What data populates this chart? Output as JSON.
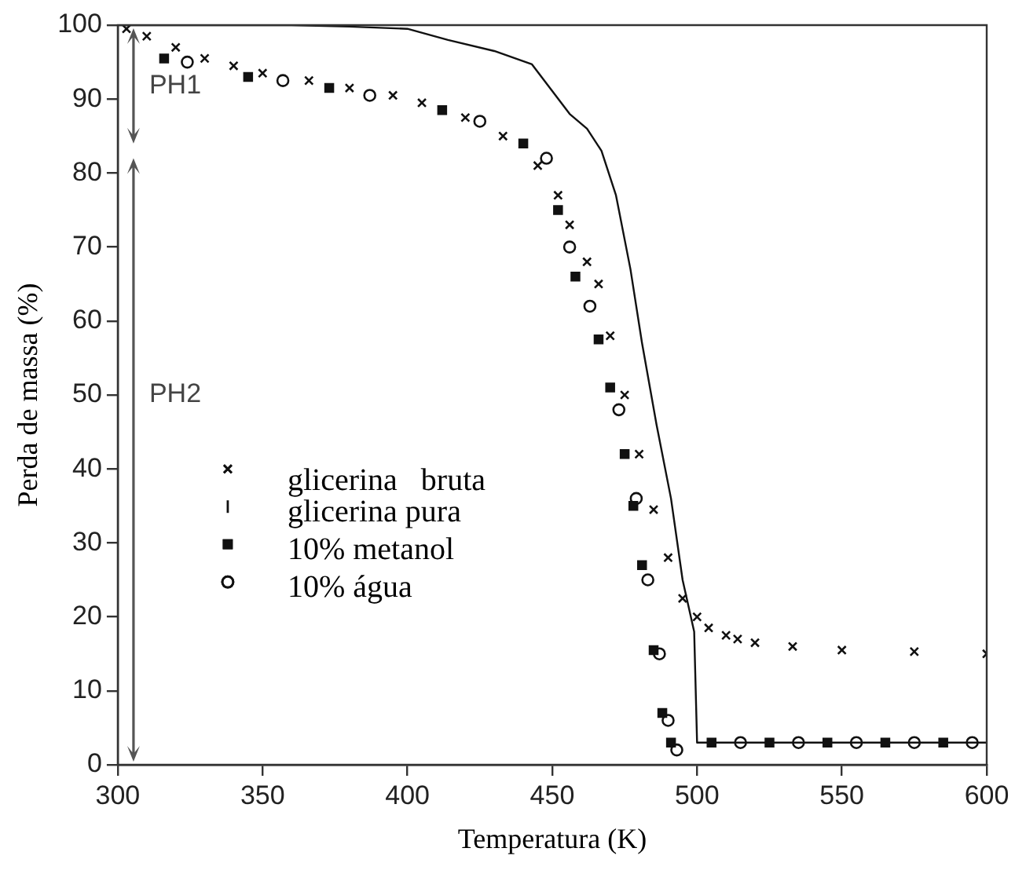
{
  "chart_data": {
    "type": "scatter",
    "xlabel": "Temperatura (K)",
    "ylabel": "Perda de massa (%)",
    "xlim": [
      300,
      600
    ],
    "xticks": [
      300,
      350,
      400,
      450,
      500,
      550,
      600
    ],
    "ylim": [
      0,
      100
    ],
    "yticks": [
      0,
      10,
      20,
      30,
      40,
      50,
      60,
      70,
      80,
      90,
      100
    ],
    "grid": false,
    "legend": "left",
    "annotations": [
      "PH1",
      "PH2"
    ],
    "series": [
      {
        "name": "glicerina   bruta",
        "color": "#111111",
        "marker": "cross",
        "x": [
          303,
          310,
          320,
          330,
          340,
          350,
          366,
          380,
          395,
          405,
          420,
          433,
          445,
          452,
          456,
          462,
          466,
          470,
          475,
          480,
          485,
          490,
          495,
          500,
          504,
          510,
          514,
          520,
          533,
          550,
          575,
          600
        ],
        "values": [
          99.5,
          98.5,
          97,
          95.5,
          94.5,
          93.5,
          92.5,
          91.5,
          90.5,
          89.5,
          87.5,
          85,
          81,
          77,
          73,
          68,
          65,
          58,
          50,
          42,
          34.5,
          28,
          22.5,
          20,
          18.5,
          17.5,
          17,
          16.5,
          16,
          15.5,
          15.3,
          15
        ]
      },
      {
        "name": "glicerina pura",
        "color": "#111111",
        "type": "line",
        "marker": "none",
        "x": [
          300,
          320,
          340,
          360,
          380,
          400,
          414,
          430,
          443,
          456,
          462,
          467,
          472,
          477,
          481,
          486,
          491,
          495,
          499,
          500,
          510,
          530,
          550,
          570,
          600
        ],
        "values": [
          100,
          100,
          100,
          100,
          99.8,
          99.5,
          98,
          96.5,
          94.7,
          88,
          86,
          83,
          77,
          67,
          57,
          46,
          36,
          25,
          18,
          3,
          3,
          3,
          3,
          3,
          3
        ]
      },
      {
        "name": "10% metanol",
        "color": "#111111",
        "marker": "square",
        "x": [
          316,
          345,
          373,
          412,
          440,
          452,
          458,
          466,
          470,
          475,
          478,
          481,
          485,
          488,
          491,
          505,
          525,
          545,
          565,
          585
        ],
        "values": [
          95.5,
          93,
          91.5,
          88.5,
          84,
          75,
          66,
          57.5,
          51,
          42,
          35,
          27,
          15.5,
          7,
          3,
          3,
          3,
          3,
          3,
          3
        ]
      },
      {
        "name": "10% água",
        "color": "#111111",
        "marker": "circle",
        "x": [
          324,
          357,
          387,
          425,
          448,
          456,
          463,
          473,
          479,
          483,
          487,
          490,
          493,
          515,
          535,
          555,
          575,
          595
        ],
        "values": [
          95,
          92.5,
          90.5,
          87,
          82,
          70,
          62,
          48,
          36,
          25,
          15,
          6,
          2,
          3,
          3,
          3,
          3,
          3
        ]
      }
    ]
  }
}
